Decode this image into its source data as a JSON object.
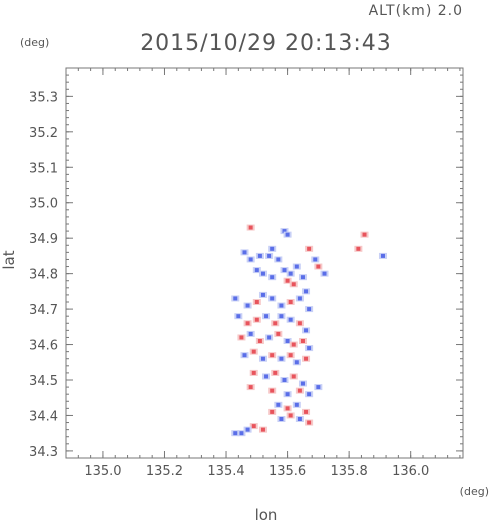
{
  "header": {
    "alt_label": "ALT(km) 2.0",
    "datetime": "2015/10/29 20:13:43",
    "y_unit": "(deg)",
    "x_unit": "(deg)"
  },
  "chart_data": {
    "type": "heatmap",
    "xlabel": "lon",
    "ylabel": "lat",
    "xlim": [
      134.88,
      136.17
    ],
    "ylim": [
      34.28,
      35.38
    ],
    "xticks": [
      135.0,
      135.2,
      135.4,
      135.6,
      135.8,
      136.0
    ],
    "xtick_labels": [
      "135.0",
      "135.2",
      "135.4",
      "135.6",
      "135.8",
      "136.0"
    ],
    "yticks": [
      34.3,
      34.4,
      34.5,
      34.6,
      34.7,
      34.8,
      34.9,
      35.0,
      35.1,
      35.2,
      35.3
    ],
    "ytick_labels": [
      "34.3",
      "34.4",
      "34.5",
      "34.6",
      "34.7",
      "34.8",
      "34.9",
      "35.0",
      "35.1",
      "35.2",
      "35.3"
    ],
    "minor_ticks_per_major": 5,
    "colors": {
      "positive": "#e8545c",
      "negative": "#5a6ee8",
      "weak_positive": "#f6c8c8",
      "weak_negative": "#c8d0f6"
    },
    "cells": [
      {
        "lon": 135.48,
        "lat": 34.93,
        "v": 1
      },
      {
        "lon": 135.59,
        "lat": 34.92,
        "v": -1
      },
      {
        "lon": 135.6,
        "lat": 34.91,
        "v": -1
      },
      {
        "lon": 135.85,
        "lat": 34.91,
        "v": 1
      },
      {
        "lon": 135.83,
        "lat": 34.87,
        "v": 1
      },
      {
        "lon": 135.91,
        "lat": 34.85,
        "v": -1
      },
      {
        "lon": 135.46,
        "lat": 34.86,
        "v": -1
      },
      {
        "lon": 135.48,
        "lat": 34.84,
        "v": -1
      },
      {
        "lon": 135.51,
        "lat": 34.85,
        "v": -1
      },
      {
        "lon": 135.54,
        "lat": 34.85,
        "v": -1
      },
      {
        "lon": 135.55,
        "lat": 34.87,
        "v": -1
      },
      {
        "lon": 135.57,
        "lat": 34.84,
        "v": -1
      },
      {
        "lon": 135.5,
        "lat": 34.81,
        "v": -1
      },
      {
        "lon": 135.52,
        "lat": 34.8,
        "v": -1
      },
      {
        "lon": 135.55,
        "lat": 34.79,
        "v": -1
      },
      {
        "lon": 135.59,
        "lat": 34.81,
        "v": -1
      },
      {
        "lon": 135.61,
        "lat": 34.8,
        "v": -1
      },
      {
        "lon": 135.63,
        "lat": 34.82,
        "v": -1
      },
      {
        "lon": 135.65,
        "lat": 34.79,
        "v": -1
      },
      {
        "lon": 135.67,
        "lat": 34.87,
        "v": 1
      },
      {
        "lon": 135.69,
        "lat": 34.84,
        "v": -1
      },
      {
        "lon": 135.7,
        "lat": 34.82,
        "v": 1
      },
      {
        "lon": 135.72,
        "lat": 34.8,
        "v": -1
      },
      {
        "lon": 135.66,
        "lat": 34.75,
        "v": -1
      },
      {
        "lon": 135.62,
        "lat": 34.77,
        "v": 1
      },
      {
        "lon": 135.6,
        "lat": 34.78,
        "v": 1
      },
      {
        "lon": 135.43,
        "lat": 34.73,
        "v": -1
      },
      {
        "lon": 135.47,
        "lat": 34.71,
        "v": -1
      },
      {
        "lon": 135.5,
        "lat": 34.72,
        "v": 1
      },
      {
        "lon": 135.52,
        "lat": 34.74,
        "v": -1
      },
      {
        "lon": 135.55,
        "lat": 34.73,
        "v": -1
      },
      {
        "lon": 135.58,
        "lat": 34.71,
        "v": -1
      },
      {
        "lon": 135.61,
        "lat": 34.72,
        "v": 1
      },
      {
        "lon": 135.64,
        "lat": 34.73,
        "v": -1
      },
      {
        "lon": 135.67,
        "lat": 34.7,
        "v": -1
      },
      {
        "lon": 135.44,
        "lat": 34.68,
        "v": -1
      },
      {
        "lon": 135.47,
        "lat": 34.66,
        "v": 1
      },
      {
        "lon": 135.5,
        "lat": 34.67,
        "v": 1
      },
      {
        "lon": 135.53,
        "lat": 34.68,
        "v": -1
      },
      {
        "lon": 135.56,
        "lat": 34.66,
        "v": 1
      },
      {
        "lon": 135.58,
        "lat": 34.68,
        "v": -1
      },
      {
        "lon": 135.61,
        "lat": 34.67,
        "v": -1
      },
      {
        "lon": 135.64,
        "lat": 34.66,
        "v": 1
      },
      {
        "lon": 135.66,
        "lat": 34.64,
        "v": -1
      },
      {
        "lon": 135.45,
        "lat": 34.62,
        "v": 1
      },
      {
        "lon": 135.48,
        "lat": 34.63,
        "v": -1
      },
      {
        "lon": 135.51,
        "lat": 34.61,
        "v": 1
      },
      {
        "lon": 135.54,
        "lat": 34.62,
        "v": -1
      },
      {
        "lon": 135.57,
        "lat": 34.63,
        "v": 1
      },
      {
        "lon": 135.6,
        "lat": 34.61,
        "v": -1
      },
      {
        "lon": 135.62,
        "lat": 34.6,
        "v": 1
      },
      {
        "lon": 135.65,
        "lat": 34.61,
        "v": 1
      },
      {
        "lon": 135.67,
        "lat": 34.59,
        "v": -1
      },
      {
        "lon": 135.46,
        "lat": 34.57,
        "v": -1
      },
      {
        "lon": 135.49,
        "lat": 34.58,
        "v": 1
      },
      {
        "lon": 135.52,
        "lat": 34.56,
        "v": -1
      },
      {
        "lon": 135.55,
        "lat": 34.57,
        "v": 1
      },
      {
        "lon": 135.58,
        "lat": 34.56,
        "v": -1
      },
      {
        "lon": 135.61,
        "lat": 34.57,
        "v": 1
      },
      {
        "lon": 135.63,
        "lat": 34.55,
        "v": -1
      },
      {
        "lon": 135.66,
        "lat": 34.56,
        "v": 1
      },
      {
        "lon": 135.49,
        "lat": 34.52,
        "v": 1
      },
      {
        "lon": 135.53,
        "lat": 34.51,
        "v": -1
      },
      {
        "lon": 135.56,
        "lat": 34.52,
        "v": 1
      },
      {
        "lon": 135.59,
        "lat": 34.5,
        "v": -1
      },
      {
        "lon": 135.62,
        "lat": 34.51,
        "v": 1
      },
      {
        "lon": 135.65,
        "lat": 34.49,
        "v": -1
      },
      {
        "lon": 135.48,
        "lat": 34.48,
        "v": 1
      },
      {
        "lon": 135.55,
        "lat": 34.47,
        "v": 1
      },
      {
        "lon": 135.6,
        "lat": 34.46,
        "v": -1
      },
      {
        "lon": 135.64,
        "lat": 34.47,
        "v": 1
      },
      {
        "lon": 135.67,
        "lat": 34.46,
        "v": -1
      },
      {
        "lon": 135.7,
        "lat": 34.48,
        "v": -1
      },
      {
        "lon": 135.57,
        "lat": 34.43,
        "v": -1
      },
      {
        "lon": 135.6,
        "lat": 34.42,
        "v": 1
      },
      {
        "lon": 135.63,
        "lat": 34.43,
        "v": -1
      },
      {
        "lon": 135.66,
        "lat": 34.41,
        "v": 1
      },
      {
        "lon": 135.55,
        "lat": 34.41,
        "v": 1
      },
      {
        "lon": 135.58,
        "lat": 34.39,
        "v": -1
      },
      {
        "lon": 135.61,
        "lat": 34.4,
        "v": 1
      },
      {
        "lon": 135.64,
        "lat": 34.39,
        "v": -1
      },
      {
        "lon": 135.67,
        "lat": 34.38,
        "v": 1
      },
      {
        "lon": 135.49,
        "lat": 34.37,
        "v": 1
      },
      {
        "lon": 135.52,
        "lat": 34.36,
        "v": 1
      },
      {
        "lon": 135.45,
        "lat": 34.35,
        "v": -1
      },
      {
        "lon": 135.47,
        "lat": 34.36,
        "v": -1
      },
      {
        "lon": 135.43,
        "lat": 34.35,
        "v": -1
      }
    ]
  }
}
